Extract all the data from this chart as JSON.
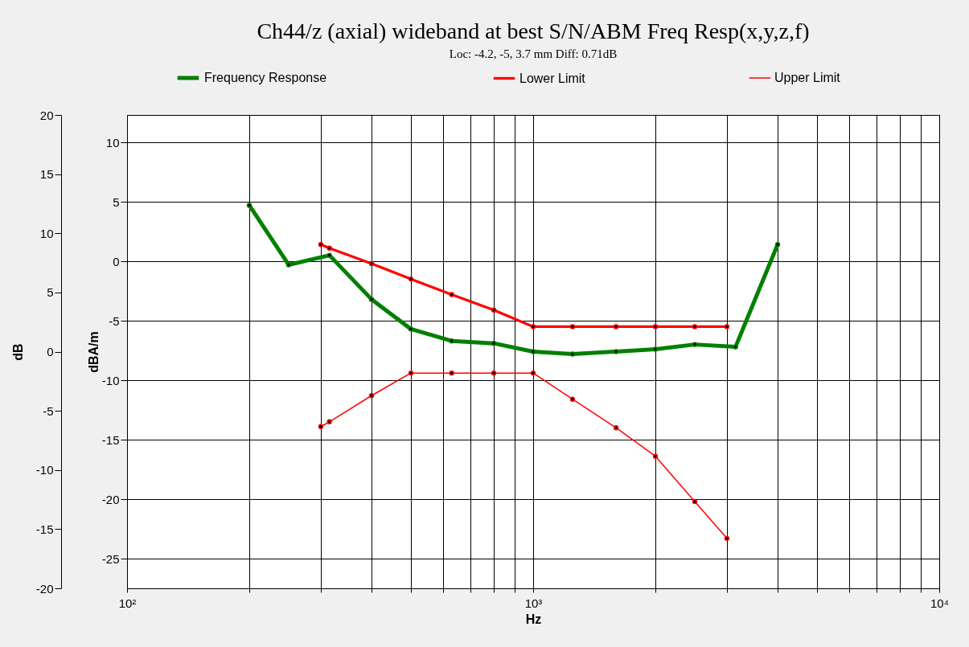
{
  "chart_data": {
    "type": "line",
    "title": "Ch44/z (axial) wideband at best S/N/ABM Freq Resp(x,y,z,f)",
    "subtitle": "Loc: -4.2, -5, 3.7 mm Diff: 0.71dB",
    "xlabel": "Hz",
    "ylabel": "dBA/m",
    "y2label": "dB",
    "log": "x",
    "grid": true,
    "legend": "top",
    "marker": "circle",
    "line_style": "solid",
    "xlim": [
      100,
      10000
    ],
    "xticks": [
      {
        "value": 100,
        "label": "10²"
      },
      {
        "value": 200,
        "label": null
      },
      {
        "value": 300,
        "label": null
      },
      {
        "value": 400,
        "label": null
      },
      {
        "value": 500,
        "label": null
      },
      {
        "value": 600,
        "label": null
      },
      {
        "value": 700,
        "label": null
      },
      {
        "value": 800,
        "label": null
      },
      {
        "value": 900,
        "label": null
      },
      {
        "value": 1000,
        "label": "10³"
      },
      {
        "value": 2000,
        "label": null
      },
      {
        "value": 3000,
        "label": null
      },
      {
        "value": 4000,
        "label": null
      },
      {
        "value": 5000,
        "label": null
      },
      {
        "value": 6000,
        "label": null
      },
      {
        "value": 7000,
        "label": null
      },
      {
        "value": 8000,
        "label": null
      },
      {
        "value": 9000,
        "label": null
      },
      {
        "value": 10000,
        "label": "10⁴"
      }
    ],
    "ylim": [
      -27.5,
      12.3
    ],
    "yticks": [
      -25,
      -20,
      -15,
      -10,
      -5,
      0,
      5,
      10
    ],
    "y2lim": [
      -20,
      20
    ],
    "y2ticks": [
      -20,
      -15,
      -10,
      -5,
      0,
      5,
      10,
      15,
      20
    ],
    "series": [
      {
        "name": "Frequency Response",
        "color": "#008000",
        "x": [
          200,
          250,
          315,
          400,
          500,
          630,
          800,
          1000,
          1250,
          1600,
          2000,
          2500,
          3150,
          4000
        ],
        "values": [
          4.7,
          -0.3,
          0.5,
          -3.2,
          -5.7,
          -6.7,
          -6.9,
          -7.6,
          -7.8,
          -7.6,
          -7.4,
          -7.0,
          -7.2,
          1.4
        ]
      },
      {
        "name": "Lower Limit",
        "color": "#ff0000",
        "x": [
          300,
          315,
          400,
          500,
          630,
          800,
          1000,
          1250,
          1600,
          2000,
          2500,
          3000
        ],
        "values": [
          1.4,
          1.1,
          -0.2,
          -1.5,
          -2.8,
          -4.1,
          -5.5,
          -5.5,
          -5.5,
          -5.5,
          -5.5,
          -5.5
        ]
      },
      {
        "name": "Upper Limit",
        "color": "#ff0000",
        "x": [
          300,
          315,
          400,
          500,
          630,
          800,
          1000,
          1250,
          1600,
          2000,
          2500,
          3000
        ],
        "values": [
          -13.9,
          -13.5,
          -11.3,
          -9.4,
          -9.4,
          -9.4,
          -9.4,
          -11.6,
          -14.0,
          -16.4,
          -20.2,
          -23.3
        ]
      }
    ]
  }
}
